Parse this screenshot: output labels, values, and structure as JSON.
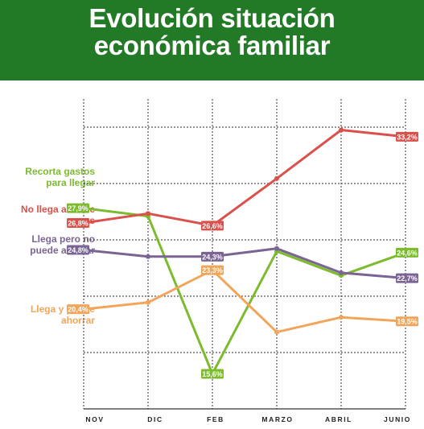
{
  "header": {
    "title_line1": "Evolución situación",
    "title_line2": "económica familiar",
    "background": "#237a26"
  },
  "chart_data": {
    "type": "line",
    "title": "Evolución situación económica familiar",
    "categories": [
      "NOV",
      "DIC",
      "FEB",
      "MARZO",
      "ABRIL",
      "JUNIO"
    ],
    "ylim": [
      13,
      36
    ],
    "grid": true,
    "legend_position": "left",
    "series": [
      {
        "name": "Recorta gastos para llegar",
        "color": "#7cbb2e",
        "values": [
          27.9,
          27.3,
          15.6,
          24.7,
          22.9,
          24.6
        ],
        "labels": [
          "27,9%",
          "",
          "15,6%",
          "",
          "",
          "24,6%"
        ]
      },
      {
        "name": "No llega a fin de mes",
        "color": "#d9514a",
        "values": [
          26.8,
          27.5,
          26.6,
          30.1,
          33.7,
          33.2
        ],
        "labels": [
          "26,8%",
          "",
          "26,6%",
          "",
          "",
          "33,2%"
        ]
      },
      {
        "name": "Llega pero no puede ahorrar",
        "color": "#7a6494",
        "values": [
          24.8,
          24.3,
          24.3,
          24.9,
          23.1,
          22.7
        ],
        "labels": [
          "24,8%",
          "",
          "24,3%",
          "",
          "",
          "22,7%"
        ]
      },
      {
        "name": "Llega y puede ahorrar",
        "color": "#f1a55b",
        "values": [
          20.4,
          20.9,
          23.3,
          18.7,
          19.8,
          19.5
        ],
        "labels": [
          "20,4%",
          "",
          "23,3%",
          "",
          "",
          "19,5%"
        ]
      }
    ]
  },
  "legend": [
    {
      "text": "Recorta gastos para llegar",
      "color": "#7cbb2e"
    },
    {
      "text": "No llega a fin de mes",
      "color": "#d9514a"
    },
    {
      "text": "Llega pero no puede ahorrar",
      "color": "#7a6494"
    },
    {
      "text": "Llega y puede ahorrar",
      "color": "#f1a55b"
    }
  ]
}
